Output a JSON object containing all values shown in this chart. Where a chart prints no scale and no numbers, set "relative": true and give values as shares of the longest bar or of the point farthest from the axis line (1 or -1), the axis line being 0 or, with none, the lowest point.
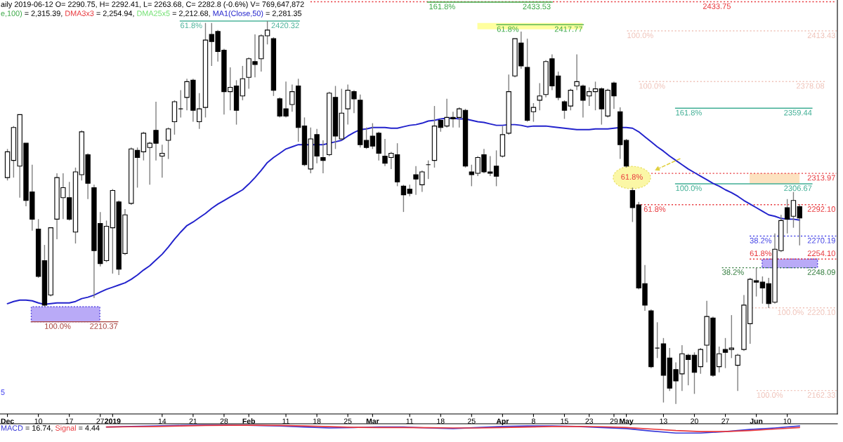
{
  "chart_data": [
    {
      "type": "candlestick",
      "title": "aily 2019-06-12 O= 2290.75, H= 2292.41, L= 2263.68, C= 2282.8 (-0.6%) V= 769,647,872",
      "categories": [
        "Dec",
        null,
        null,
        null,
        null,
        "10",
        null,
        null,
        null,
        null,
        "17",
        null,
        null,
        null,
        null,
        "27",
        null,
        "2019",
        null,
        null,
        null,
        null,
        null,
        null,
        null,
        "14",
        null,
        null,
        null,
        null,
        "21",
        null,
        null,
        null,
        null,
        "28",
        null,
        null,
        null,
        "Feb",
        null,
        null,
        null,
        null,
        null,
        "11",
        null,
        null,
        null,
        null,
        "18",
        null,
        null,
        null,
        null,
        "25",
        null,
        null,
        null,
        "Mar",
        null,
        null,
        null,
        null,
        null,
        "11",
        null,
        null,
        null,
        null,
        "18",
        null,
        null,
        null,
        null,
        "25",
        null,
        null,
        null,
        null,
        "Apr",
        null,
        null,
        null,
        null,
        "8",
        null,
        null,
        null,
        null,
        "15",
        null,
        null,
        null,
        "23",
        null,
        null,
        null,
        "29",
        null,
        "May",
        null,
        null,
        null,
        null,
        null,
        "13",
        null,
        null,
        null,
        null,
        "20",
        null,
        null,
        null,
        null,
        "27",
        null,
        null,
        null,
        null,
        "Jun",
        null,
        null,
        null,
        null,
        "10",
        null,
        null
      ],
      "ohlc": [
        [
          2311,
          2331,
          2309,
          2329
        ],
        [
          2323,
          2347,
          2311,
          2346
        ],
        [
          2319,
          2355,
          2297,
          2355
        ],
        [
          2335,
          2335,
          2291,
          2295
        ],
        [
          2301,
          2320,
          2274,
          2282
        ],
        [
          2275,
          2282,
          2241,
          2242
        ],
        [
          2253,
          2264,
          2221,
          2222
        ],
        [
          2229,
          2276,
          2228,
          2276
        ],
        [
          2282,
          2314,
          2268,
          2311
        ],
        [
          2297,
          2314,
          2282,
          2304
        ],
        [
          2297,
          2308,
          2281,
          2282
        ],
        [
          2273,
          2318,
          2265,
          2315
        ],
        [
          2313,
          2344,
          2309,
          2343
        ],
        [
          2327,
          2328,
          2296,
          2307
        ],
        [
          2304,
          2306,
          2227,
          2260
        ],
        [
          2279,
          2287,
          2249,
          2251
        ],
        [
          2253,
          2281,
          2252,
          2277
        ],
        [
          2276,
          2303,
          2244,
          2302
        ],
        [
          2294,
          2295,
          2243,
          2247
        ],
        [
          2258,
          2289,
          2257,
          2285
        ],
        [
          2293,
          2332,
          2292,
          2331
        ],
        [
          2330,
          2332,
          2304,
          2325
        ],
        [
          2329,
          2343,
          2323,
          2342
        ],
        [
          2332,
          2336,
          2306,
          2335
        ],
        [
          2344,
          2364,
          2323,
          2335
        ],
        [
          2326,
          2334,
          2311,
          2328
        ],
        [
          2337,
          2346,
          2324,
          2345
        ],
        [
          2350,
          2365,
          2341,
          2364
        ],
        [
          2359,
          2372,
          2353,
          2359
        ],
        [
          2367,
          2380,
          2358,
          2378
        ],
        [
          2379,
          2380,
          2350,
          2358
        ],
        [
          2350,
          2370,
          2345,
          2359
        ],
        [
          2360,
          2419,
          2353,
          2407
        ],
        [
          2411,
          2419,
          2389,
          2406
        ],
        [
          2413,
          2414,
          2392,
          2399
        ],
        [
          2400,
          2401,
          2355,
          2371
        ],
        [
          2371,
          2388,
          2358,
          2374
        ],
        [
          2375,
          2379,
          2348,
          2358
        ],
        [
          2368,
          2389,
          2365,
          2380
        ],
        [
          2381,
          2395,
          2373,
          2394
        ],
        [
          2392,
          2411,
          2381,
          2390
        ],
        [
          2394,
          2411,
          2385,
          2410
        ],
        [
          2410,
          2420.32,
          2404,
          2414
        ],
        [
          2408,
          2409,
          2368,
          2372
        ],
        [
          2366,
          2367,
          2353,
          2354
        ],
        [
          2359,
          2378,
          2353,
          2354
        ],
        [
          2362,
          2376,
          2357,
          2371
        ],
        [
          2375,
          2380,
          2336,
          2346
        ],
        [
          2347,
          2353,
          2319,
          2320
        ],
        [
          2317,
          2346,
          2314,
          2338
        ],
        [
          2341,
          2345,
          2321,
          2326
        ],
        [
          2325,
          2337,
          2314,
          2323
        ],
        [
          2327,
          2371,
          2326,
          2370
        ],
        [
          2367,
          2375,
          2331,
          2340
        ],
        [
          2338,
          2373,
          2337,
          2356
        ],
        [
          2359,
          2376,
          2348,
          2372
        ],
        [
          2371,
          2372,
          2356,
          2366
        ],
        [
          2365,
          2369,
          2332,
          2334
        ],
        [
          2337,
          2346,
          2331,
          2332
        ],
        [
          2340,
          2349,
          2331,
          2333
        ],
        [
          2342,
          2343,
          2323,
          2328
        ],
        [
          2326,
          2338,
          2319,
          2321
        ],
        [
          2325,
          2329,
          2317,
          2328
        ],
        [
          2327,
          2335,
          2305,
          2308
        ],
        [
          2305,
          2306,
          2287,
          2299
        ],
        [
          2303,
          2306,
          2298,
          2300
        ],
        [
          2313,
          2319,
          2299,
          2310
        ],
        [
          2306,
          2316,
          2301,
          2315
        ],
        [
          2320,
          2323,
          2310,
          2320
        ],
        [
          2323,
          2361,
          2318,
          2347
        ],
        [
          2351,
          2352,
          2343,
          2346
        ],
        [
          2347,
          2366,
          2346,
          2353
        ],
        [
          2353,
          2357,
          2346,
          2352
        ],
        [
          2353,
          2360,
          2346,
          2359
        ],
        [
          2358,
          2359,
          2318,
          2319
        ],
        [
          2315,
          2320,
          2305,
          2313
        ],
        [
          2314,
          2326,
          2312,
          2325
        ],
        [
          2327,
          2331,
          2314,
          2315
        ],
        [
          2315,
          2326,
          2312,
          2314
        ],
        [
          2319,
          2330,
          2305,
          2312
        ],
        [
          2326,
          2347,
          2325,
          2341
        ],
        [
          2342,
          2383,
          2341,
          2371
        ],
        [
          2382,
          2408,
          2381,
          2408
        ],
        [
          2405,
          2413,
          2387,
          2389
        ],
        [
          2388,
          2408,
          2350,
          2351
        ],
        [
          2357,
          2363,
          2350,
          2360
        ],
        [
          2365,
          2377,
          2358,
          2368
        ],
        [
          2369,
          2393,
          2367,
          2392
        ],
        [
          2394,
          2397,
          2372,
          2375
        ],
        [
          2382,
          2385,
          2365,
          2367
        ],
        [
          2364,
          2365,
          2352,
          2358
        ],
        [
          2361,
          2373,
          2358,
          2372
        ],
        [
          2375,
          2397,
          2372,
          2378
        ],
        [
          2375,
          2376,
          2353,
          2365
        ],
        [
          2368,
          2374,
          2361,
          2371
        ],
        [
          2371,
          2378,
          2358,
          2373
        ],
        [
          2373,
          2374,
          2348,
          2359
        ],
        [
          2354,
          2373,
          2353,
          2372
        ],
        [
          2377,
          2378,
          2359,
          2368
        ],
        [
          2357,
          2360,
          2324,
          2334
        ],
        [
          2337,
          2338,
          2318,
          2319
        ],
        [
          2302,
          2304,
          2280,
          2290
        ],
        [
          2292,
          2294,
          2233,
          2234
        ],
        [
          2237,
          2250,
          2218,
          2222
        ],
        [
          2218,
          2219,
          2178,
          2179
        ],
        [
          2192,
          2210,
          2185,
          2192
        ],
        [
          2195,
          2199,
          2154,
          2173
        ],
        [
          2185,
          2192,
          2162,
          2164
        ],
        [
          2177,
          2182,
          2153,
          2169
        ],
        [
          2174,
          2194,
          2162,
          2188
        ],
        [
          2187,
          2188,
          2166,
          2184
        ],
        [
          2187,
          2189,
          2160,
          2175
        ],
        [
          2179,
          2192,
          2174,
          2191
        ],
        [
          2194,
          2225,
          2182,
          2214
        ],
        [
          2213,
          2214,
          2172,
          2173
        ],
        [
          2179,
          2193,
          2175,
          2188
        ],
        [
          2191,
          2199,
          2178,
          2189
        ],
        [
          2191,
          2215,
          2185,
          2192
        ],
        [
          2180,
          2188,
          2162,
          2187
        ],
        [
          2191,
          2229,
          2190,
          2222
        ],
        [
          2209,
          2241,
          2195,
          2240
        ],
        [
          2239,
          2248,
          2228,
          2238
        ],
        [
          2238,
          2242,
          2223,
          2234
        ],
        [
          2237,
          2241,
          2220,
          2223
        ],
        [
          2224,
          2272,
          2223,
          2261
        ],
        [
          2260,
          2285,
          2259,
          2281
        ],
        [
          2290,
          2296,
          2272,
          2282
        ],
        [
          2284,
          2301,
          2276,
          2295
        ],
        [
          2290.75,
          2292.41,
          2263.68,
          2282.8
        ]
      ],
      "series": [
        {
          "name": "MA1(Close,50)",
          "type": "line",
          "color": "#2222cc",
          "values": [
            2223,
            2224.5,
            2225.5,
            2225.5,
            2225,
            2223.5,
            2222.5,
            2223,
            2223.5,
            2223.5,
            2223.5,
            2224.5,
            2226.5,
            2227.5,
            2229,
            2231,
            2233,
            2234.5,
            2236,
            2237.5,
            2240,
            2243,
            2246.5,
            2249.5,
            2253.5,
            2257.5,
            2262.5,
            2268,
            2273,
            2277.5,
            2280,
            2283,
            2286,
            2289.5,
            2292.5,
            2295,
            2297.5,
            2300,
            2302.5,
            2306.5,
            2311,
            2316,
            2321.5,
            2325,
            2328,
            2331,
            2332.5,
            2334,
            2334,
            2334,
            2334,
            2334,
            2335,
            2336,
            2337,
            2340,
            2342.5,
            2344.5,
            2345,
            2346,
            2346,
            2346,
            2345.5,
            2345.5,
            2346.5,
            2347.5,
            2348,
            2349,
            2350.5,
            2351,
            2352,
            2352.5,
            2352.5,
            2352,
            2352,
            2351,
            2350,
            2349.5,
            2348.5,
            2347.5,
            2347.5,
            2348,
            2348,
            2347.5,
            2346.5,
            2347,
            2347,
            2347,
            2346.5,
            2346,
            2345.5,
            2345,
            2344.5,
            2344.5,
            2344.5,
            2345,
            2345,
            2345,
            2345.5,
            2346,
            2346,
            2345.5,
            2343,
            2339.5,
            2336,
            2332.5,
            2329.5,
            2326,
            2323,
            2320,
            2317,
            2314.5,
            2312,
            2309.5,
            2307,
            2305,
            2302.5,
            2300.5,
            2298,
            2295,
            2292.5,
            2290,
            2287.5,
            2285,
            2284,
            2282.5,
            2282,
            2282,
            2281.35
          ]
        }
      ],
      "ylim": [
        2146,
        2435
      ],
      "tick_labels": "x",
      "ref_lines": [
        {
          "axis": "y",
          "value": 2433.75,
          "label": "2433.75",
          "color": "#e8383d",
          "line_style": "dotted"
        },
        {
          "axis": "y",
          "value": 2433.53,
          "label": "2433.53",
          "color": "#3aa845",
          "line_style": "solid"
        },
        {
          "axis": "y",
          "value": 2420.32,
          "label": "2420.32",
          "color": "#4db39b",
          "line_style": "solid"
        },
        {
          "axis": "y",
          "value": 2417.77,
          "label": "2417.77",
          "color": "#3aa845",
          "line_style": "solid"
        },
        {
          "axis": "y",
          "value": 2413.43,
          "label": "2413.43",
          "color": "#efc2b8",
          "line_style": "dotted"
        },
        {
          "axis": "y",
          "value": 2378.08,
          "label": "2378.08",
          "color": "#efc2b8",
          "line_style": "dotted"
        },
        {
          "axis": "y",
          "value": 2359.44,
          "label": "2359.44",
          "color": "#3fae94",
          "line_style": "solid"
        },
        {
          "axis": "y",
          "value": 2313.97,
          "label": "2313.97",
          "color": "#e8383d",
          "line_style": "dotted"
        },
        {
          "axis": "y",
          "value": 2306.67,
          "label": "2306.67",
          "color": "#3fae94",
          "line_style": "solid"
        },
        {
          "axis": "y",
          "value": 2292.1,
          "label": "2292.10",
          "color": "#e8383d",
          "line_style": "dotted"
        },
        {
          "axis": "y",
          "value": 2270.19,
          "label": "2270.19",
          "color": "#4646e6",
          "line_style": "dotted"
        },
        {
          "axis": "y",
          "value": 2254.1,
          "label": "2254.10",
          "color": "#e8383d",
          "line_style": "dotted"
        },
        {
          "axis": "y",
          "value": 2248.09,
          "label": "2248.09",
          "color": "#2f7a3a",
          "line_style": "dotted"
        },
        {
          "axis": "y",
          "value": 2220.1,
          "label": "2220.10",
          "color": "#efc2b8",
          "line_style": "dotted"
        },
        {
          "axis": "y",
          "value": 2162.33,
          "label": "2162.33",
          "color": "#efc2b8",
          "line_style": "dotted"
        },
        {
          "axis": "y",
          "value": 2210.37,
          "label": "2210.37",
          "color": "#a8413c",
          "line_style": "solid"
        }
      ],
      "bands": [
        {
          "axis": "y",
          "from": 2414.6,
          "to": 2419.0,
          "color": "#ffff9e"
        },
        {
          "axis": "y",
          "from": 2306.67,
          "to": 2313.97,
          "color": "#fde2c0"
        },
        {
          "axis": "y",
          "from": 2248.09,
          "to": 2254.1,
          "color": "#b9aaf7"
        },
        {
          "axis": "y",
          "from": 2210.37,
          "to": 2220.8,
          "color": "#b9aaf7"
        }
      ],
      "annotations": [
        "e,100)",
        "= 2,315.39,",
        "DMA3x3",
        "= 2,254.94,",
        "DMA25x5",
        "= 2,212.68,",
        "= 2,281.35",
        "5",
        "61.8%",
        {
          "text": "161.8%",
          "y": 2433.53
        },
        {
          "text": "61.8%",
          "y": 2420.32
        },
        {
          "text": "61.8%",
          "y": 2417.77
        },
        {
          "text": "100.0%",
          "y": 2413.43
        },
        {
          "text": "100.0%",
          "y": 2378.08
        },
        {
          "text": "161.8%",
          "y": 2359.44
        },
        {
          "text": "100.0%",
          "y": 2306.67
        },
        {
          "text": "61.8%",
          "y": 2292.1
        },
        {
          "text": "38.2%",
          "y": 2270.19
        },
        {
          "text": "61.8%",
          "y": 2254.1
        },
        {
          "text": "38.2%",
          "y": 2248.09
        },
        {
          "text": "100.0%",
          "y": 2220.1
        },
        {
          "text": "100.0%",
          "y": 2162.33
        },
        {
          "text": "100.0%",
          "y": 2210.37
        }
      ]
    },
    {
      "type": "line",
      "relative": true,
      "categories": [
        null,
        null,
        null,
        null,
        null,
        null,
        null,
        null,
        null,
        null,
        null,
        null,
        null,
        null,
        null,
        null,
        null,
        null,
        null,
        null,
        null,
        null,
        null,
        null,
        null,
        null,
        null,
        null,
        null,
        null,
        null,
        null,
        null
      ],
      "series": [
        {
          "name": "MACD",
          "color": "#3a3ad8",
          "values": [
            null,
            null,
            null,
            null,
            0.75,
            0.81,
            0.88,
            0.94,
            1,
            1,
            0.94,
            0.88,
            0.75,
            0.63,
            0.69,
            0.75,
            0.75,
            0.63,
            0.56,
            0.69,
            0.81,
            0.88,
            0.88,
            0.81,
            0.69,
            0.56,
            0.25,
            0,
            0,
            0.19,
            0.44,
            0.63,
            0.88
          ]
        },
        {
          "name": "Signal",
          "color": "#e8383d",
          "values": [
            null,
            null,
            null,
            null,
            0.75,
            0.78,
            0.81,
            0.88,
            0.94,
            0.96,
            0.96,
            0.94,
            0.88,
            0.79,
            0.71,
            0.69,
            0.69,
            0.66,
            0.63,
            0.63,
            0.69,
            0.75,
            0.81,
            0.81,
            0.78,
            0.69,
            0.5,
            0.31,
            0.19,
            0.19,
            0.31,
            0.5,
            0.69
          ]
        }
      ],
      "annotations": [
        "= 16.74,",
        "= 4.44"
      ],
      "tick_labels": false
    }
  ]
}
